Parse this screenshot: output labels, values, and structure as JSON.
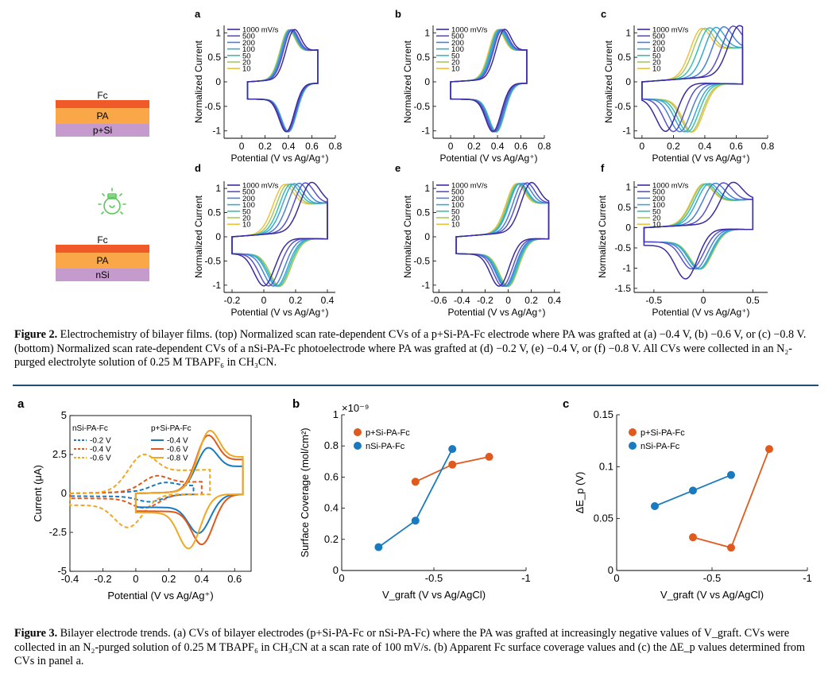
{
  "figure2": {
    "stacks": [
      {
        "layers": [
          {
            "label": "Fc",
            "color": "#f05a28"
          },
          {
            "label": "PA",
            "color": "#f9a748"
          },
          {
            "label": "p+Si",
            "color": "#c59bcd"
          }
        ]
      },
      {
        "layers": [
          {
            "label": "Fc",
            "color": "#f05a28"
          },
          {
            "label": "PA",
            "color": "#f9a748"
          },
          {
            "label": "nSi",
            "color": "#c59bcd"
          }
        ]
      }
    ],
    "bulb_icon": "lightbulb-icon",
    "bulb_color": "#5cc85c",
    "scan_rates": [
      "1000 mV/s",
      "500",
      "200",
      "100",
      "50",
      "20",
      "10"
    ],
    "scan_colors": [
      "#3a2ca0",
      "#5a52c8",
      "#4a80d8",
      "#38a8d8",
      "#38c0b0",
      "#a8c860",
      "#f0c040"
    ],
    "caption_prefix": "Figure 2.",
    "caption_text": "Electrochemistry of bilayer films. (top) Normalized scan rate-dependent CVs of a p+Si-PA-Fc electrode where PA was grafted at (a) −0.4 V, (b) −0.6 V, or (c) −0.8 V. (bottom) Normalized scan rate-dependent CVs of a nSi-PA-Fc photoelectrode where PA was grafted at (d) −0.2 V, (e) −0.4 V, or (f) −0.8 V. All CVs were collected in an N₂-purged electrolyte solution of 0.25 M TBAPF₆ in CH₃CN."
  },
  "figure3": {
    "caption_prefix": "Figure 3.",
    "caption_text": "Bilayer electrode trends. (a) CVs of bilayer electrodes (p+Si-PA-Fc or nSi-PA-Fc) where the PA was grafted at increasingly negative values of V_graft. CVs were collected in an N₂-purged solution of 0.25 M TBAPF₆ in CH₃CN at a scan rate of 100 mV/s. (b) Apparent Fc surface coverage values and (c) the ΔE_p values determined from CVs in panel a."
  },
  "chart_data": [
    {
      "panel": "a",
      "type": "line",
      "title": "",
      "xlabel": "Potential (V vs Ag/Ag⁺)",
      "ylabel": "Normalized Current",
      "xlim": [
        -0.15,
        0.8
      ],
      "ylim": [
        -1.15,
        1.15
      ],
      "xticks": [
        0,
        0.2,
        0.4,
        0.6,
        0.8
      ],
      "xtick_labels": [
        "0",
        "0.2",
        "0.4",
        "0.6",
        "0.8"
      ],
      "yticks": [
        -1,
        -0.5,
        0,
        0.5,
        1
      ],
      "ytick_labels": [
        "-1",
        "-0.5",
        "0",
        "0.5",
        "1"
      ],
      "series": [
        {
          "name": "1000 mV/s",
          "xmin": 0.05,
          "xmax": 0.65,
          "pa": 0.45,
          "pc": 0.38
        },
        {
          "name": "500",
          "xmin": 0.05,
          "xmax": 0.65,
          "pa": 0.43,
          "pc": 0.39
        },
        {
          "name": "200",
          "xmin": 0.05,
          "xmax": 0.65,
          "pa": 0.42,
          "pc": 0.39
        },
        {
          "name": "100",
          "xmin": 0.05,
          "xmax": 0.65,
          "pa": 0.41,
          "pc": 0.4
        },
        {
          "name": "50",
          "xmin": 0.05,
          "xmax": 0.65,
          "pa": 0.41,
          "pc": 0.4
        },
        {
          "name": "20",
          "xmin": 0.05,
          "xmax": 0.65,
          "pa": 0.4,
          "pc": 0.4
        },
        {
          "name": "10",
          "xmin": 0.05,
          "xmax": 0.65,
          "pa": 0.4,
          "pc": 0.4
        }
      ]
    },
    {
      "panel": "b",
      "type": "line",
      "title": "",
      "xlabel": "Potential (V vs Ag/Ag⁺)",
      "ylabel": "Normalized Current",
      "xlim": [
        -0.15,
        0.8
      ],
      "ylim": [
        -1.15,
        1.15
      ],
      "xticks": [
        0,
        0.2,
        0.4,
        0.6,
        0.8
      ],
      "xtick_labels": [
        "0",
        "0.2",
        "0.4",
        "0.6",
        "0.8"
      ],
      "yticks": [
        -1,
        -0.5,
        0,
        0.5,
        1
      ],
      "ytick_labels": [
        "-1",
        "-0.5",
        "0",
        "0.5",
        "1"
      ],
      "series": [
        {
          "name": "1000 mV/s",
          "xmin": 0.0,
          "xmax": 0.65,
          "pa": 0.46,
          "pc": 0.36
        },
        {
          "name": "500",
          "xmin": 0.0,
          "xmax": 0.65,
          "pa": 0.44,
          "pc": 0.37
        },
        {
          "name": "200",
          "xmin": 0.0,
          "xmax": 0.65,
          "pa": 0.43,
          "pc": 0.38
        },
        {
          "name": "100",
          "xmin": 0.0,
          "xmax": 0.65,
          "pa": 0.42,
          "pc": 0.38
        },
        {
          "name": "50",
          "xmin": 0.0,
          "xmax": 0.65,
          "pa": 0.41,
          "pc": 0.39
        },
        {
          "name": "20",
          "xmin": 0.0,
          "xmax": 0.65,
          "pa": 0.41,
          "pc": 0.39
        },
        {
          "name": "10",
          "xmin": 0.0,
          "xmax": 0.65,
          "pa": 0.4,
          "pc": 0.39
        }
      ]
    },
    {
      "panel": "c",
      "type": "line",
      "title": "",
      "xlabel": "Potential (V vs Ag/Ag⁺)",
      "ylabel": "Normalized Current",
      "xlim": [
        -0.05,
        0.8
      ],
      "ylim": [
        -1.15,
        1.15
      ],
      "xticks": [
        0,
        0.2,
        0.4,
        0.6,
        0.8
      ],
      "xtick_labels": [
        "0",
        "0.2",
        "0.4",
        "0.6",
        "0.8"
      ],
      "yticks": [
        -1,
        -0.5,
        0,
        0.5,
        1
      ],
      "ytick_labels": [
        "-1",
        "-0.5",
        "0",
        "0.5",
        "1"
      ],
      "series": [
        {
          "name": "1000 mV/s",
          "xmin": 0.0,
          "xmax": 0.64,
          "pa": 0.62,
          "pc": 0.15
        },
        {
          "name": "500",
          "xmin": 0.0,
          "xmax": 0.64,
          "pa": 0.58,
          "pc": 0.2
        },
        {
          "name": "200",
          "xmin": 0.0,
          "xmax": 0.64,
          "pa": 0.52,
          "pc": 0.24
        },
        {
          "name": "100",
          "xmin": 0.0,
          "xmax": 0.64,
          "pa": 0.47,
          "pc": 0.27
        },
        {
          "name": "50",
          "xmin": 0.0,
          "xmax": 0.64,
          "pa": 0.43,
          "pc": 0.29
        },
        {
          "name": "20",
          "xmin": 0.0,
          "xmax": 0.64,
          "pa": 0.4,
          "pc": 0.31
        },
        {
          "name": "10",
          "xmin": 0.0,
          "xmax": 0.64,
          "pa": 0.38,
          "pc": 0.32
        }
      ]
    },
    {
      "panel": "d",
      "type": "line",
      "title": "",
      "xlabel": "Potential (V vs Ag/Ag⁺)",
      "ylabel": "Normalized Current",
      "xlim": [
        -0.25,
        0.45
      ],
      "ylim": [
        -1.15,
        1.15
      ],
      "xticks": [
        -0.2,
        0,
        0.2,
        0.4
      ],
      "xtick_labels": [
        "-0.2",
        "0",
        "0.2",
        "0.4"
      ],
      "yticks": [
        -1,
        -0.5,
        0,
        0.5,
        1
      ],
      "ytick_labels": [
        "-1",
        "-0.5",
        "0",
        "0.5",
        "1"
      ],
      "series": [
        {
          "name": "1000 mV/s",
          "xmin": -0.2,
          "xmax": 0.4,
          "pa": 0.3,
          "pc": 0.0
        },
        {
          "name": "500",
          "xmin": -0.2,
          "xmax": 0.4,
          "pa": 0.26,
          "pc": 0.03
        },
        {
          "name": "200",
          "xmin": -0.2,
          "xmax": 0.4,
          "pa": 0.22,
          "pc": 0.06
        },
        {
          "name": "100",
          "xmin": -0.2,
          "xmax": 0.4,
          "pa": 0.19,
          "pc": 0.08
        },
        {
          "name": "50",
          "xmin": -0.2,
          "xmax": 0.4,
          "pa": 0.17,
          "pc": 0.09
        },
        {
          "name": "20",
          "xmin": -0.2,
          "xmax": 0.4,
          "pa": 0.15,
          "pc": 0.1
        },
        {
          "name": "10",
          "xmin": -0.2,
          "xmax": 0.4,
          "pa": 0.13,
          "pc": 0.1
        }
      ]
    },
    {
      "panel": "e",
      "type": "line",
      "title": "",
      "xlabel": "Potential (V vs Ag/Ag⁺)",
      "ylabel": "Normalized Current",
      "xlim": [
        -0.65,
        0.45
      ],
      "ylim": [
        -1.15,
        1.15
      ],
      "xticks": [
        -0.6,
        -0.4,
        -0.2,
        0,
        0.2,
        0.4
      ],
      "xtick_labels": [
        "-0.6",
        "-0.4",
        "-0.2",
        "0",
        "0.2",
        "0.4"
      ],
      "yticks": [
        -1,
        -0.5,
        0,
        0.5,
        1
      ],
      "ytick_labels": [
        "-1",
        "-0.5",
        "0",
        "0.5",
        "1"
      ],
      "series": [
        {
          "name": "1000 mV/s",
          "xmin": -0.45,
          "xmax": 0.35,
          "pa": 0.2,
          "pc": -0.08
        },
        {
          "name": "500",
          "xmin": -0.45,
          "xmax": 0.35,
          "pa": 0.16,
          "pc": -0.05
        },
        {
          "name": "200",
          "xmin": -0.45,
          "xmax": 0.35,
          "pa": 0.13,
          "pc": -0.03
        },
        {
          "name": "100",
          "xmin": -0.45,
          "xmax": 0.35,
          "pa": 0.1,
          "pc": -0.02
        },
        {
          "name": "50",
          "xmin": -0.45,
          "xmax": 0.35,
          "pa": 0.09,
          "pc": -0.01
        },
        {
          "name": "20",
          "xmin": -0.45,
          "xmax": 0.35,
          "pa": 0.08,
          "pc": 0.0
        },
        {
          "name": "10",
          "xmin": -0.45,
          "xmax": 0.35,
          "pa": 0.07,
          "pc": 0.0
        }
      ]
    },
    {
      "panel": "f",
      "type": "line",
      "title": "",
      "xlabel": "Potential (V vs Ag/Ag⁺)",
      "ylabel": "Normalized Current",
      "xlim": [
        -0.7,
        0.65
      ],
      "ylim": [
        -1.6,
        1.15
      ],
      "xticks": [
        -0.5,
        0,
        0.5
      ],
      "xtick_labels": [
        "-0.5",
        "0",
        "0.5"
      ],
      "yticks": [
        -1.5,
        -1,
        -0.5,
        0,
        0.5,
        1
      ],
      "ytick_labels": [
        "-1.5",
        "-1",
        "-0.5",
        "0",
        "0.5",
        "1"
      ],
      "series": [
        {
          "name": "1000 mV/s",
          "xmin": -0.6,
          "xmax": 0.5,
          "pa": 0.3,
          "pc": -0.18
        },
        {
          "name": "500",
          "xmin": -0.6,
          "xmax": 0.5,
          "pa": 0.2,
          "pc": -0.12
        },
        {
          "name": "200",
          "xmin": -0.6,
          "xmax": 0.5,
          "pa": 0.12,
          "pc": -0.08
        },
        {
          "name": "100",
          "xmin": -0.6,
          "xmax": 0.5,
          "pa": 0.06,
          "pc": -0.05
        },
        {
          "name": "50",
          "xmin": -0.6,
          "xmax": 0.5,
          "pa": 0.03,
          "pc": -0.04
        },
        {
          "name": "20",
          "xmin": -0.6,
          "xmax": 0.5,
          "pa": 0.01,
          "pc": -0.03
        },
        {
          "name": "10",
          "xmin": -0.6,
          "xmax": 0.5,
          "pa": 0.0,
          "pc": -0.03
        }
      ]
    },
    {
      "panel": "a",
      "type": "line",
      "title": "",
      "xlabel": "Potential (V vs Ag/Ag⁺)",
      "ylabel": "Current (μA)",
      "xlim": [
        -0.4,
        0.7
      ],
      "ylim": [
        -5,
        5
      ],
      "xticks": [
        -0.4,
        -0.2,
        0,
        0.2,
        0.4,
        0.6
      ],
      "xtick_labels": [
        "-0.4",
        "-0.2",
        "0",
        "0.2",
        "0.4",
        "0.6"
      ],
      "yticks": [
        -5,
        -2.5,
        0,
        2.5,
        5
      ],
      "ytick_labels": [
        "-5",
        "-2.5",
        "0",
        "2.5",
        "5"
      ],
      "legend_groups": [
        "nSi-PA-Fc",
        "p+Si-PA-Fc"
      ],
      "series": [
        {
          "name": "-0.2 V",
          "group": "nSi-PA-Fc",
          "dashed": true,
          "color": "#1a7abf",
          "xmin": -0.4,
          "xmax": 0.35,
          "pa": 0.18,
          "pc": 0.08,
          "amp": 0.55
        },
        {
          "name": "-0.4 V",
          "group": "nSi-PA-Fc",
          "dashed": true,
          "color": "#e05a1e",
          "xmin": -0.4,
          "xmax": 0.4,
          "pa": 0.13,
          "pc": 0.05,
          "amp": 1.0
        },
        {
          "name": "-0.6 V",
          "group": "nSi-PA-Fc",
          "dashed": true,
          "color": "#f0a820",
          "xmin": -0.4,
          "xmax": 0.45,
          "pa": 0.05,
          "pc": -0.05,
          "amp": 2.4
        },
        {
          "name": "-0.4 V",
          "group": "p+Si-PA-Fc",
          "dashed": false,
          "color": "#1a7abf",
          "xmin": 0.0,
          "xmax": 0.65,
          "pa": 0.44,
          "pc": 0.38,
          "amp": 2.8
        },
        {
          "name": "-0.6 V",
          "group": "p+Si-PA-Fc",
          "dashed": false,
          "color": "#e05a1e",
          "xmin": 0.0,
          "xmax": 0.65,
          "pa": 0.44,
          "pc": 0.4,
          "amp": 3.6
        },
        {
          "name": "-0.8 V",
          "group": "p+Si-PA-Fc",
          "dashed": false,
          "color": "#f0a820",
          "xmin": 0.0,
          "xmax": 0.65,
          "pa": 0.45,
          "pc": 0.32,
          "amp": 3.9
        }
      ]
    },
    {
      "panel": "b",
      "type": "line",
      "title": "",
      "xlabel": "V_graft (V vs Ag/AgCl)",
      "ylabel": "Surface Coverage (mol/cm²)",
      "multiplier": "×10⁻⁹",
      "x_reversed": true,
      "xlim": [
        0,
        -1
      ],
      "ylim": [
        0,
        1
      ],
      "xticks": [
        0,
        -0.5,
        -1
      ],
      "xtick_labels": [
        "0",
        "-0.5",
        "-1"
      ],
      "yticks": [
        0,
        0.2,
        0.4,
        0.6,
        0.8,
        1
      ],
      "ytick_labels": [
        "0",
        "0.2",
        "0.4",
        "0.6",
        "0.8",
        "1"
      ],
      "series": [
        {
          "name": "p+Si-PA-Fc",
          "color": "#e05a1e",
          "x": [
            -0.4,
            -0.6,
            -0.8
          ],
          "y": [
            0.57,
            0.68,
            0.73
          ]
        },
        {
          "name": "nSi-PA-Fc",
          "color": "#1a7abf",
          "x": [
            -0.2,
            -0.4,
            -0.6
          ],
          "y": [
            0.15,
            0.32,
            0.78
          ]
        }
      ]
    },
    {
      "panel": "c",
      "type": "line",
      "title": "",
      "xlabel": "V_graft (V vs Ag/AgCl)",
      "ylabel": "ΔE_p (V)",
      "x_reversed": true,
      "xlim": [
        0,
        -1
      ],
      "ylim": [
        0,
        0.15
      ],
      "xticks": [
        0,
        -0.5,
        -1
      ],
      "xtick_labels": [
        "0",
        "-0.5",
        "-1"
      ],
      "yticks": [
        0,
        0.05,
        0.1,
        0.15
      ],
      "ytick_labels": [
        "0",
        "0.05",
        "0.1",
        "0.15"
      ],
      "series": [
        {
          "name": "p+Si-PA-Fc",
          "color": "#e05a1e",
          "x": [
            -0.4,
            -0.6,
            -0.8
          ],
          "y": [
            0.032,
            0.022,
            0.117
          ]
        },
        {
          "name": "nSi-PA-Fc",
          "color": "#1a7abf",
          "x": [
            -0.2,
            -0.4,
            -0.6
          ],
          "y": [
            0.062,
            0.077,
            0.092
          ]
        }
      ]
    }
  ]
}
